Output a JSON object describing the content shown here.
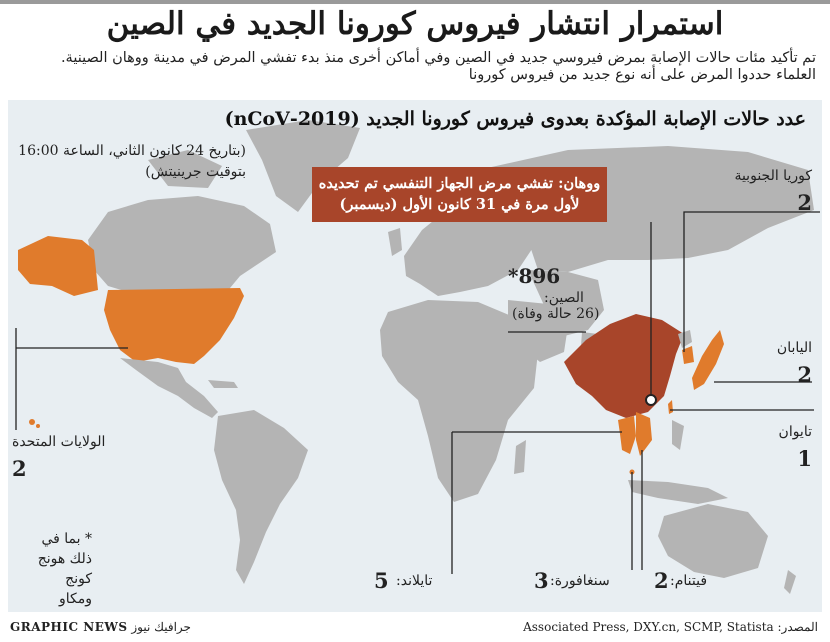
{
  "headline": "استمرار انتشار فيروس كورونا الجديد في الصين",
  "intro": "تم تأكيد مئات حالات الإصابة بمرض فيروسي جديد في الصين وفي أماكن أخرى منذ بدء تفشي المرض في مدينة ووهان الصينية. العلماء حددوا المرض على أنه نوع جديد من فيروس كورونا",
  "map_title": "عدد حالات الإصابة المؤكدة بعدوى فيروس كورونا الجديد (2019-nCoV)",
  "date_note": "(بتاريخ 24 كانون الثاني، الساعة 16:00 بتوقيت جرينيتش)",
  "callout": "ووهان: تفشي مرض الجهاز التنفسي تم تحديده لأول مرة في 31 كانون الأول (ديسمبر)",
  "countries": {
    "china": {
      "name": "الصين:",
      "value": "896*",
      "deaths": "(26 حالة وفاة)"
    },
    "south_korea": {
      "name": "كوريا الجنوبية",
      "value": "2"
    },
    "japan": {
      "name": "اليابان",
      "value": "2"
    },
    "taiwan": {
      "name": "تايوان",
      "value": "1"
    },
    "usa": {
      "name": "الولايات المتحدة",
      "value": "2"
    },
    "thailand": {
      "name": "تايلاند:",
      "value": "5"
    },
    "singapore": {
      "name": "سنغافورة:",
      "value": "3"
    },
    "vietnam": {
      "name": "فيتنام:",
      "value": "2"
    }
  },
  "footnote": "* بما في ذلك هونج كونج ومكاو",
  "source": "المصدر: Associated Press, DXY.cn, SCMP, Statista",
  "credit_brand": "GRAPHIC NEWS",
  "credit_arabic": "جرافيك نيوز",
  "colors": {
    "affected": "#e07b2c",
    "china": "#a8452a",
    "land": "#b4b4b4",
    "sea": "#e8eef2"
  }
}
